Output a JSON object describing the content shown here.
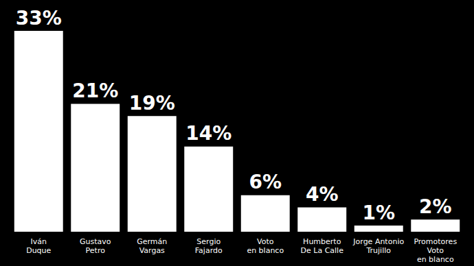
{
  "chart_data": {
    "type": "bar",
    "categories": [
      "Iván\nDuque",
      "Gustavo\nPetro",
      "Germán\nVargas",
      "Sergio\nFajardo",
      "Voto\nen blanco",
      "Humberto\nDe La Calle",
      "Jorge Antonio\nTrujillo",
      "Promotores\nVoto\nen blanco"
    ],
    "values": [
      33,
      21,
      19,
      14,
      6,
      4,
      1,
      2
    ],
    "value_labels": [
      "33%",
      "21%",
      "19%",
      "14%",
      "6%",
      "4%",
      "1%",
      "2%"
    ],
    "color": "#ffffff",
    "ylim": [
      0,
      33
    ],
    "grid": false,
    "data_labels": true,
    "tick_labels": "x"
  }
}
